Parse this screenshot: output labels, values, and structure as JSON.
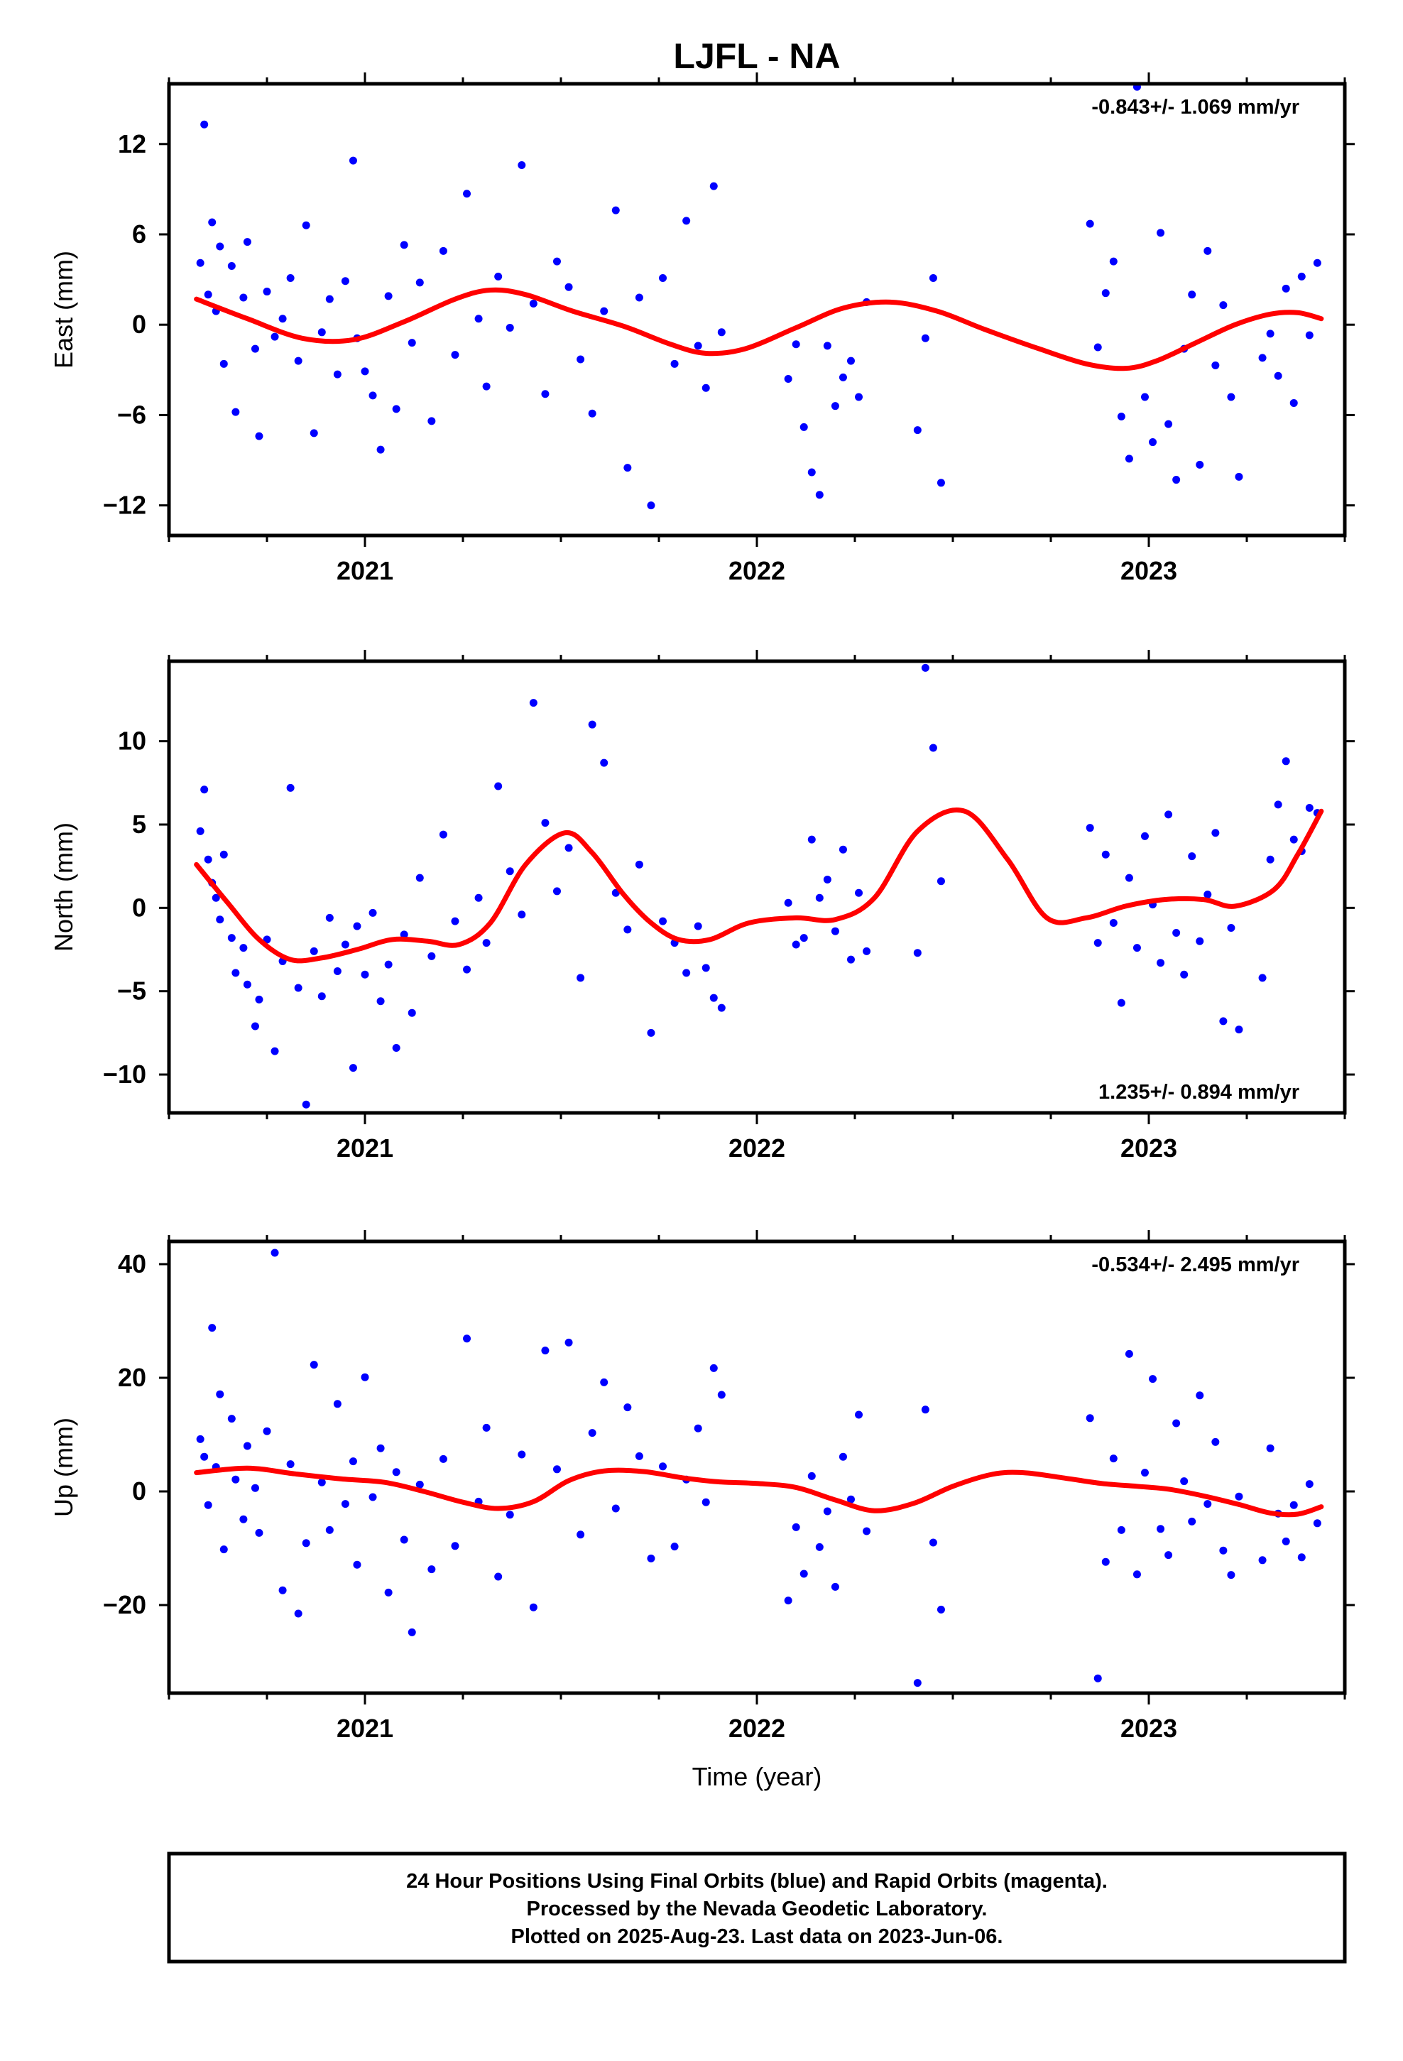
{
  "title": "LJFL - NA",
  "xlabel": "Time (year)",
  "x_ticks": [
    2021,
    2022,
    2023
  ],
  "x_range": [
    2020.5,
    2023.5
  ],
  "colors": {
    "final_orbits": "#0000ff",
    "rapid_orbits": "#ff00ff",
    "fit": "#ff0000"
  },
  "footnote": {
    "line1": "24 Hour Positions Using Final Orbits (blue) and Rapid Orbits (magenta).",
    "line2": "Processed by the Nevada Geodetic Laboratory.",
    "line3": "Plotted on 2025-Aug-23. Last data on 2023-Jun-06."
  },
  "chart_data": [
    {
      "type": "scatter",
      "id": "east",
      "ylabel": "East (mm)",
      "rate": "-0.843+/- 1.069 mm/yr",
      "rate_position": "top-right",
      "ylim": [
        -14,
        16
      ],
      "yticks": [
        -12,
        -6,
        0,
        6,
        12
      ],
      "series": [
        {
          "name": "Final Orbits",
          "color": "#0000ff",
          "x": [
            2020.58,
            2020.59,
            2020.6,
            2020.61,
            2020.62,
            2020.63,
            2020.64,
            2020.66,
            2020.67,
            2020.69,
            2020.7,
            2020.72,
            2020.73,
            2020.75,
            2020.77,
            2020.79,
            2020.81,
            2020.83,
            2020.85,
            2020.87,
            2020.89,
            2020.91,
            2020.93,
            2020.95,
            2020.97,
            2020.98,
            2021.0,
            2021.02,
            2021.04,
            2021.06,
            2021.08,
            2021.1,
            2021.12,
            2021.14,
            2021.17,
            2021.2,
            2021.23,
            2021.26,
            2021.29,
            2021.31,
            2021.34,
            2021.37,
            2021.4,
            2021.43,
            2021.46,
            2021.49,
            2021.52,
            2021.55,
            2021.58,
            2021.61,
            2021.64,
            2021.67,
            2021.7,
            2021.73,
            2021.76,
            2021.79,
            2021.82,
            2021.85,
            2021.87,
            2021.89,
            2021.91,
            2022.08,
            2022.1,
            2022.12,
            2022.14,
            2022.16,
            2022.18,
            2022.2,
            2022.22,
            2022.24,
            2022.26,
            2022.28,
            2022.41,
            2022.43,
            2022.45,
            2022.47,
            2022.85,
            2022.87,
            2022.89,
            2022.91,
            2022.93,
            2022.95,
            2022.97,
            2022.99,
            2023.01,
            2023.03,
            2023.05,
            2023.07,
            2023.09,
            2023.11,
            2023.13,
            2023.15,
            2023.17,
            2023.19,
            2023.21,
            2023.23,
            2023.29,
            2023.31,
            2023.33,
            2023.35,
            2023.37,
            2023.39,
            2023.41,
            2023.43
          ],
          "y": [
            4.1,
            13.3,
            2.0,
            6.8,
            0.9,
            5.2,
            -2.6,
            3.9,
            -5.8,
            1.8,
            5.5,
            -1.6,
            -7.4,
            2.2,
            -0.8,
            0.4,
            3.1,
            -2.4,
            6.6,
            -7.2,
            -0.5,
            1.7,
            -3.3,
            2.9,
            10.9,
            -0.9,
            -3.1,
            -4.7,
            -8.3,
            1.9,
            -5.6,
            5.3,
            -1.2,
            2.8,
            -6.4,
            4.9,
            -2.0,
            8.7,
            0.4,
            -4.1,
            3.2,
            -0.2,
            10.6,
            1.4,
            -4.6,
            4.2,
            2.5,
            -2.3,
            -5.9,
            0.9,
            7.6,
            -9.5,
            1.8,
            -12.0,
            3.1,
            -2.6,
            6.9,
            -1.4,
            -4.2,
            9.2,
            -0.5,
            -3.6,
            -1.3,
            -6.8,
            -9.8,
            -11.3,
            -1.4,
            -5.4,
            -3.5,
            -2.4,
            -4.8,
            1.5,
            -7.0,
            -0.9,
            3.1,
            -10.5,
            6.7,
            -1.5,
            2.1,
            4.2,
            -6.1,
            -8.9,
            15.8,
            -4.8,
            -7.8,
            6.1,
            -6.6,
            -10.3,
            -1.6,
            2.0,
            -9.3,
            4.9,
            -2.7,
            1.3,
            -4.8,
            -10.1,
            -2.2,
            -0.6,
            -3.4,
            2.4,
            -5.2,
            3.2,
            -0.7,
            4.1
          ]
        }
      ],
      "fit": {
        "x": [
          2020.57,
          2020.7,
          2020.84,
          2020.97,
          2021.1,
          2021.23,
          2021.32,
          2021.41,
          2021.53,
          2021.66,
          2021.78,
          2021.87,
          2021.97,
          2022.1,
          2022.22,
          2022.34,
          2022.46,
          2022.58,
          2022.72,
          2022.84,
          2022.94,
          2023.02,
          2023.12,
          2023.22,
          2023.31,
          2023.38,
          2023.44
        ],
        "y": [
          1.7,
          0.4,
          -0.9,
          -1.0,
          0.2,
          1.7,
          2.3,
          2.0,
          0.9,
          -0.1,
          -1.3,
          -1.9,
          -1.6,
          -0.2,
          1.1,
          1.5,
          0.9,
          -0.3,
          -1.6,
          -2.6,
          -2.9,
          -2.4,
          -1.2,
          0.0,
          0.7,
          0.8,
          0.4
        ]
      }
    },
    {
      "type": "scatter",
      "id": "north",
      "ylabel": "North (mm)",
      "rate": "1.235+/- 0.894 mm/yr",
      "rate_position": "bottom-right",
      "ylim": [
        -12.3,
        14.8
      ],
      "yticks": [
        -10,
        -5,
        0,
        5,
        10
      ],
      "series": [
        {
          "name": "Final Orbits",
          "color": "#0000ff",
          "x": [
            2020.58,
            2020.59,
            2020.6,
            2020.61,
            2020.62,
            2020.63,
            2020.64,
            2020.66,
            2020.67,
            2020.69,
            2020.7,
            2020.72,
            2020.73,
            2020.75,
            2020.77,
            2020.79,
            2020.81,
            2020.83,
            2020.85,
            2020.87,
            2020.89,
            2020.91,
            2020.93,
            2020.95,
            2020.97,
            2020.98,
            2021.0,
            2021.02,
            2021.04,
            2021.06,
            2021.08,
            2021.1,
            2021.12,
            2021.14,
            2021.17,
            2021.2,
            2021.23,
            2021.26,
            2021.29,
            2021.31,
            2021.34,
            2021.37,
            2021.4,
            2021.43,
            2021.46,
            2021.49,
            2021.52,
            2021.55,
            2021.58,
            2021.61,
            2021.64,
            2021.67,
            2021.7,
            2021.73,
            2021.76,
            2021.79,
            2021.82,
            2021.85,
            2021.87,
            2021.89,
            2021.91,
            2022.08,
            2022.1,
            2022.12,
            2022.14,
            2022.16,
            2022.18,
            2022.2,
            2022.22,
            2022.24,
            2022.26,
            2022.28,
            2022.41,
            2022.43,
            2022.45,
            2022.47,
            2022.85,
            2022.87,
            2022.89,
            2022.91,
            2022.93,
            2022.95,
            2022.97,
            2022.99,
            2023.01,
            2023.03,
            2023.05,
            2023.07,
            2023.09,
            2023.11,
            2023.13,
            2023.15,
            2023.17,
            2023.19,
            2023.21,
            2023.23,
            2023.29,
            2023.31,
            2023.33,
            2023.35,
            2023.37,
            2023.39,
            2023.41,
            2023.43
          ],
          "y": [
            4.6,
            7.1,
            2.9,
            1.5,
            0.6,
            -0.7,
            3.2,
            -1.8,
            -3.9,
            -2.4,
            -4.6,
            -7.1,
            -5.5,
            -1.9,
            -8.6,
            -3.2,
            7.2,
            -4.8,
            -11.8,
            -2.6,
            -5.3,
            -0.6,
            -3.8,
            -2.2,
            -9.6,
            -1.1,
            -4.0,
            -0.3,
            -5.6,
            -3.4,
            -8.4,
            -1.6,
            -6.3,
            1.8,
            -2.9,
            4.4,
            -0.8,
            -3.7,
            0.6,
            -2.1,
            7.3,
            2.2,
            -0.4,
            12.3,
            5.1,
            1.0,
            3.6,
            -4.2,
            11.0,
            8.7,
            0.9,
            -1.3,
            2.6,
            -7.5,
            -0.8,
            -2.1,
            -3.9,
            -1.1,
            -3.6,
            -5.4,
            -6.0,
            0.3,
            -2.2,
            -1.8,
            4.1,
            0.6,
            1.7,
            -1.4,
            3.5,
            -3.1,
            0.9,
            -2.6,
            -2.7,
            14.4,
            9.6,
            1.6,
            4.8,
            -2.1,
            3.2,
            -0.9,
            -5.7,
            1.8,
            -2.4,
            4.3,
            0.2,
            -3.3,
            5.6,
            -1.5,
            -4.0,
            3.1,
            -2.0,
            0.8,
            4.5,
            -6.8,
            -1.2,
            -7.3,
            -4.2,
            2.9,
            6.2,
            8.8,
            4.1,
            3.4,
            6.0,
            5.7
          ]
        }
      ],
      "fit": {
        "x": [
          2020.57,
          2020.65,
          2020.73,
          2020.81,
          2020.89,
          2020.98,
          2021.07,
          2021.16,
          2021.24,
          2021.32,
          2021.41,
          2021.51,
          2021.58,
          2021.66,
          2021.73,
          2021.8,
          2021.88,
          2021.98,
          2022.1,
          2022.2,
          2022.3,
          2022.41,
          2022.53,
          2022.64,
          2022.74,
          2022.84,
          2022.94,
          2023.04,
          2023.14,
          2023.22,
          2023.32,
          2023.38,
          2023.44
        ],
        "y": [
          2.6,
          0.3,
          -1.9,
          -3.1,
          -3.0,
          -2.5,
          -1.9,
          -2.0,
          -2.2,
          -0.9,
          2.6,
          4.5,
          3.3,
          0.8,
          -0.9,
          -1.9,
          -1.9,
          -0.9,
          -0.6,
          -0.7,
          0.6,
          4.6,
          5.8,
          2.9,
          -0.6,
          -0.6,
          0.1,
          0.5,
          0.5,
          0.1,
          1.1,
          3.2,
          5.8
        ]
      }
    },
    {
      "type": "scatter",
      "id": "up",
      "ylabel": "Up (mm)",
      "rate": "-0.534+/- 2.495 mm/yr",
      "rate_position": "top-right",
      "ylim": [
        -35.5,
        44
      ],
      "yticks": [
        -20,
        0,
        20,
        40
      ],
      "series": [
        {
          "name": "Final Orbits",
          "color": "#0000ff",
          "x": [
            2020.58,
            2020.59,
            2020.6,
            2020.61,
            2020.62,
            2020.63,
            2020.64,
            2020.66,
            2020.67,
            2020.69,
            2020.7,
            2020.72,
            2020.73,
            2020.75,
            2020.77,
            2020.79,
            2020.81,
            2020.83,
            2020.85,
            2020.87,
            2020.89,
            2020.91,
            2020.93,
            2020.95,
            2020.97,
            2020.98,
            2021.0,
            2021.02,
            2021.04,
            2021.06,
            2021.08,
            2021.1,
            2021.12,
            2021.14,
            2021.17,
            2021.2,
            2021.23,
            2021.26,
            2021.29,
            2021.31,
            2021.34,
            2021.37,
            2021.4,
            2021.43,
            2021.46,
            2021.49,
            2021.52,
            2021.55,
            2021.58,
            2021.61,
            2021.64,
            2021.67,
            2021.7,
            2021.73,
            2021.76,
            2021.79,
            2021.82,
            2021.85,
            2021.87,
            2021.89,
            2021.91,
            2022.08,
            2022.1,
            2022.12,
            2022.14,
            2022.16,
            2022.18,
            2022.2,
            2022.22,
            2022.24,
            2022.26,
            2022.28,
            2022.41,
            2022.43,
            2022.45,
            2022.47,
            2022.85,
            2022.87,
            2022.89,
            2022.91,
            2022.93,
            2022.95,
            2022.97,
            2022.99,
            2023.01,
            2023.03,
            2023.05,
            2023.07,
            2023.09,
            2023.11,
            2023.13,
            2023.15,
            2023.17,
            2023.19,
            2023.21,
            2023.23,
            2023.29,
            2023.31,
            2023.33,
            2023.35,
            2023.37,
            2023.39,
            2023.41,
            2023.43
          ],
          "y": [
            9.2,
            6.1,
            -2.4,
            28.8,
            4.3,
            17.1,
            -10.2,
            12.8,
            2.1,
            -4.9,
            8.0,
            0.6,
            -7.3,
            10.6,
            42.0,
            -17.4,
            4.8,
            -21.5,
            -9.1,
            22.3,
            1.6,
            -6.8,
            15.4,
            -2.2,
            5.3,
            -12.9,
            20.1,
            -1.0,
            7.6,
            -17.8,
            3.4,
            -8.5,
            -24.8,
            1.2,
            -13.7,
            5.7,
            -9.6,
            26.9,
            -1.8,
            11.2,
            -15.0,
            -4.1,
            6.5,
            -20.4,
            24.8,
            3.9,
            26.2,
            -7.6,
            10.3,
            19.2,
            -3.0,
            14.8,
            6.2,
            -11.8,
            4.4,
            -9.7,
            2.1,
            11.1,
            -1.9,
            21.7,
            17.0,
            -19.2,
            -6.3,
            -14.5,
            2.7,
            -9.8,
            -3.5,
            -16.8,
            6.1,
            -1.4,
            13.5,
            -7.0,
            -33.7,
            14.4,
            -9.0,
            -20.8,
            12.9,
            -32.9,
            -12.4,
            5.8,
            -6.8,
            24.2,
            -14.6,
            3.3,
            19.8,
            -6.6,
            -11.2,
            12.0,
            1.8,
            -5.3,
            16.9,
            -2.2,
            8.7,
            -10.4,
            -14.7,
            -0.9,
            -12.1,
            7.6,
            -3.9,
            -8.8,
            -2.4,
            -11.6,
            1.3,
            -5.6
          ]
        }
      ],
      "fit": {
        "x": [
          2020.57,
          2020.7,
          2020.82,
          2020.94,
          2021.05,
          2021.15,
          2021.25,
          2021.34,
          2021.43,
          2021.52,
          2021.61,
          2021.71,
          2021.81,
          2021.9,
          2022.0,
          2022.1,
          2022.2,
          2022.3,
          2022.4,
          2022.5,
          2022.6,
          2022.68,
          2022.78,
          2022.88,
          2022.97,
          2023.05,
          2023.14,
          2023.23,
          2023.31,
          2023.38,
          2023.44
        ],
        "y": [
          3.3,
          4.1,
          3.1,
          2.2,
          1.6,
          0.0,
          -1.9,
          -3.0,
          -1.8,
          1.9,
          3.6,
          3.5,
          2.4,
          1.7,
          1.4,
          0.7,
          -1.5,
          -3.4,
          -2.1,
          0.9,
          3.0,
          3.3,
          2.4,
          1.4,
          0.9,
          0.4,
          -0.8,
          -2.3,
          -3.8,
          -4.0,
          -2.7
        ]
      }
    }
  ]
}
